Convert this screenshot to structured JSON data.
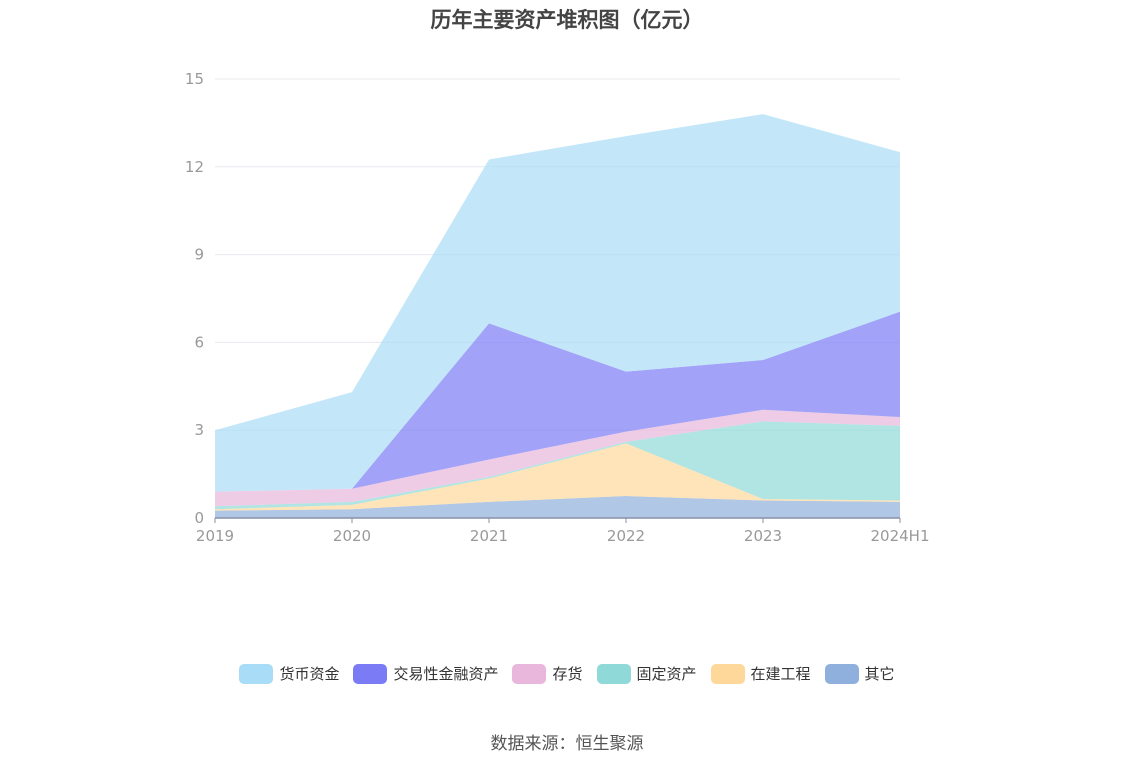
{
  "title": "历年主要资产堆积图（亿元）",
  "source": "数据来源：恒生聚源",
  "chart_data": {
    "type": "area",
    "stacked": true,
    "categories": [
      "2019",
      "2020",
      "2021",
      "2022",
      "2023",
      "2024H1"
    ],
    "yticks": [
      "0",
      "3",
      "6",
      "9",
      "12",
      "15"
    ],
    "ylim": [
      0,
      15
    ],
    "grid": true,
    "legend_position": "bottom",
    "series": [
      {
        "name": "其它",
        "color": "#8fafdc",
        "values": [
          0.25,
          0.3,
          0.55,
          0.75,
          0.6,
          0.55
        ]
      },
      {
        "name": "在建工程",
        "color": "#fdd89a",
        "values": [
          0.05,
          0.15,
          0.8,
          1.8,
          0.05,
          0.05
        ]
      },
      {
        "name": "固定资产",
        "color": "#8fdad9",
        "values": [
          0.1,
          0.1,
          0.05,
          0.05,
          2.65,
          2.55
        ]
      },
      {
        "name": "存货",
        "color": "#e8b7db",
        "values": [
          0.5,
          0.45,
          0.6,
          0.35,
          0.4,
          0.3
        ]
      },
      {
        "name": "交易性金融资产",
        "color": "#7b7cf5",
        "values": [
          0.0,
          0.0,
          4.65,
          2.05,
          1.7,
          3.6
        ]
      },
      {
        "name": "货币资金",
        "color": "#a9ddf7",
        "values": [
          2.1,
          3.3,
          5.6,
          8.05,
          8.4,
          5.45
        ]
      }
    ],
    "legend_order": [
      "货币资金",
      "交易性金融资产",
      "存货",
      "固定资产",
      "在建工程",
      "其它"
    ]
  }
}
